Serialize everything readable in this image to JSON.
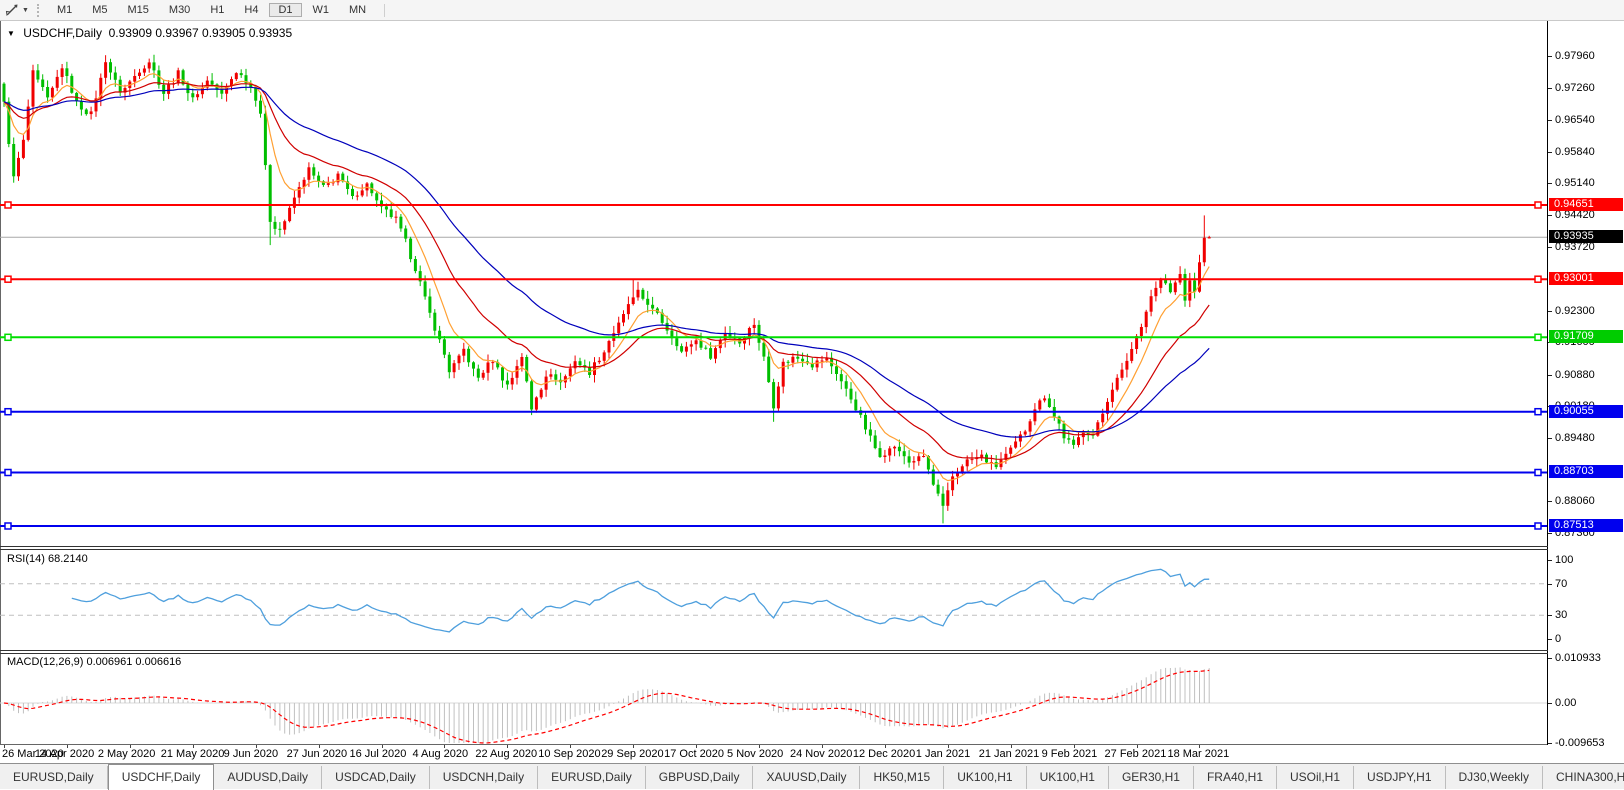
{
  "toolbar": {
    "timeframes": [
      "M1",
      "M5",
      "M15",
      "M30",
      "H1",
      "H4",
      "D1",
      "W1",
      "MN"
    ],
    "active_timeframe": "D1"
  },
  "chart": {
    "title_symbol": "USDCHF,Daily",
    "title_ohlc": "0.93909 0.93967 0.93905 0.93935"
  },
  "rsi_panel": {
    "label": "RSI(14)",
    "value": "68.2140"
  },
  "macd_panel": {
    "label": "MACD(12,26,9)",
    "values": "0.006961 0.006616"
  },
  "axis_badges": [
    {
      "label": "0.94651",
      "value": 0.94651,
      "color": "#ff0000"
    },
    {
      "label": "0.93935",
      "value": 0.93935,
      "color": "#000000"
    },
    {
      "label": "0.93001",
      "value": 0.93001,
      "color": "#ff0000"
    },
    {
      "label": "0.91709",
      "value": 0.91709,
      "color": "#00cc00"
    },
    {
      "label": "0.90055",
      "value": 0.90055,
      "color": "#0000ee"
    },
    {
      "label": "0.88703",
      "value": 0.88703,
      "color": "#0000ee"
    },
    {
      "label": "0.87513",
      "value": 0.87513,
      "color": "#0000ee"
    }
  ],
  "tabs": [
    {
      "label": "EURUSD,Daily",
      "active": false
    },
    {
      "label": "USDCHF,Daily",
      "active": true
    },
    {
      "label": "AUDUSD,Daily",
      "active": false
    },
    {
      "label": "USDCAD,Daily",
      "active": false
    },
    {
      "label": "USDCNH,Daily",
      "active": false
    },
    {
      "label": "EURUSD,Daily",
      "active": false
    },
    {
      "label": "GBPUSD,Daily",
      "active": false
    },
    {
      "label": "XAUUSD,Daily",
      "active": false
    },
    {
      "label": "HK50,M15",
      "active": false
    },
    {
      "label": "UK100,H1",
      "active": false
    },
    {
      "label": "UK100,H1",
      "active": false
    },
    {
      "label": "GER30,H1",
      "active": false
    },
    {
      "label": "FRA40,H1",
      "active": false
    },
    {
      "label": "USOil,H1",
      "active": false
    },
    {
      "label": "USDJPY,H1",
      "active": false
    },
    {
      "label": "DJ30,Weekly",
      "active": false
    },
    {
      "label": "CHINA300,H1",
      "active": false
    }
  ],
  "chart_data": {
    "type": "candlestick",
    "symbol": "USDCHF",
    "timeframe": "Daily",
    "last_ohlc": {
      "open": 0.93909,
      "high": 0.93967,
      "low": 0.93905,
      "close": 0.93935
    },
    "current_price": 0.93935,
    "up_color": "#f00000",
    "down_color": "#00be00",
    "y_axis": {
      "range": [
        0.8709,
        0.9874
      ],
      "ticks": [
        "0.97960",
        "0.97260",
        "0.96540",
        "0.95840",
        "0.95140",
        "0.94420",
        "0.93720",
        "0.92300",
        "0.91600",
        "0.90880",
        "0.90180",
        "0.89480",
        "0.88060",
        "0.87360"
      ]
    },
    "x_labels": [
      "26 Mar 2020",
      "14 Apr 2020",
      "2 May 2020",
      "21 May 2020",
      "9 Jun 2020",
      "27 Jun 2020",
      "16 Jul 2020",
      "4 Aug 2020",
      "22 Aug 2020",
      "10 Sep 2020",
      "29 Sep 2020",
      "17 Oct 2020",
      "5 Nov 2020",
      "24 Nov 2020",
      "12 Dec 2020",
      "1 Jan 2021",
      "21 Jan 2021",
      "9 Feb 2021",
      "27 Feb 2021",
      "18 Mar 2021"
    ],
    "label_every_n_candles": 13,
    "candles_total": 250,
    "close_anchors": [
      [
        0,
        0.969
      ],
      [
        2,
        0.9525
      ],
      [
        4,
        0.961
      ],
      [
        6,
        0.9762
      ],
      [
        9,
        0.97
      ],
      [
        12,
        0.9775
      ],
      [
        15,
        0.969
      ],
      [
        18,
        0.9668
      ],
      [
        21,
        0.9788
      ],
      [
        24,
        0.9715
      ],
      [
        27,
        0.9752
      ],
      [
        30,
        0.9785
      ],
      [
        33,
        0.9712
      ],
      [
        36,
        0.976
      ],
      [
        39,
        0.9698
      ],
      [
        42,
        0.9742
      ],
      [
        45,
        0.9708
      ],
      [
        48,
        0.976
      ],
      [
        51,
        0.9728
      ],
      [
        53,
        0.9672
      ],
      [
        55,
        0.943
      ],
      [
        57,
        0.9408
      ],
      [
        60,
        0.9478
      ],
      [
        63,
        0.9545
      ],
      [
        66,
        0.9502
      ],
      [
        69,
        0.9532
      ],
      [
        72,
        0.9482
      ],
      [
        75,
        0.9508
      ],
      [
        78,
        0.9458
      ],
      [
        81,
        0.9432
      ],
      [
        83,
        0.9382
      ],
      [
        86,
        0.9292
      ],
      [
        89,
        0.9192
      ],
      [
        92,
        0.9098
      ],
      [
        95,
        0.9142
      ],
      [
        98,
        0.9078
      ],
      [
        101,
        0.9122
      ],
      [
        104,
        0.9062
      ],
      [
        107,
        0.9132
      ],
      [
        109,
        0.9012
      ],
      [
        112,
        0.9088
      ],
      [
        115,
        0.9072
      ],
      [
        118,
        0.9118
      ],
      [
        121,
        0.9092
      ],
      [
        124,
        0.9142
      ],
      [
        127,
        0.9202
      ],
      [
        129,
        0.9242
      ],
      [
        131,
        0.9268
      ],
      [
        134,
        0.9232
      ],
      [
        137,
        0.9188
      ],
      [
        140,
        0.9138
      ],
      [
        143,
        0.9162
      ],
      [
        146,
        0.9128
      ],
      [
        149,
        0.9182
      ],
      [
        152,
        0.9162
      ],
      [
        155,
        0.9198
      ],
      [
        157,
        0.9122
      ],
      [
        159,
        0.9022
      ],
      [
        161,
        0.9112
      ],
      [
        164,
        0.9128
      ],
      [
        167,
        0.9112
      ],
      [
        170,
        0.9122
      ],
      [
        173,
        0.9072
      ],
      [
        176,
        0.9012
      ],
      [
        179,
        0.8948
      ],
      [
        181,
        0.8908
      ],
      [
        184,
        0.8928
      ],
      [
        187,
        0.8892
      ],
      [
        190,
        0.8908
      ],
      [
        192,
        0.8842
      ],
      [
        194,
        0.8792
      ],
      [
        196,
        0.8858
      ],
      [
        199,
        0.8898
      ],
      [
        202,
        0.8908
      ],
      [
        205,
        0.8882
      ],
      [
        208,
        0.8922
      ],
      [
        211,
        0.8962
      ],
      [
        213,
        0.9012
      ],
      [
        215,
        0.9042
      ],
      [
        217,
        0.8998
      ],
      [
        219,
        0.8952
      ],
      [
        221,
        0.8928
      ],
      [
        223,
        0.8968
      ],
      [
        225,
        0.8952
      ],
      [
        227,
        0.9002
      ],
      [
        229,
        0.9062
      ],
      [
        231,
        0.9092
      ],
      [
        233,
        0.9142
      ],
      [
        235,
        0.9202
      ],
      [
        237,
        0.9262
      ],
      [
        239,
        0.9302
      ],
      [
        241,
        0.9272
      ],
      [
        243,
        0.9312
      ],
      [
        244,
        0.9258
      ],
      [
        245,
        0.9292
      ],
      [
        246,
        0.9272
      ],
      [
        247,
        0.9332
      ],
      [
        248,
        0.9398
      ],
      [
        249,
        0.93935
      ]
    ],
    "candle_overrides": {
      "55": {
        "l": 0.9376
      },
      "109": {
        "l": 0.8998
      },
      "130": {
        "h": 0.93
      },
      "159": {
        "l": 0.8983
      },
      "194": {
        "l": 0.8757
      },
      "248": {
        "h": 0.9442
      },
      "249": {
        "o": 0.93909,
        "h": 0.93967,
        "l": 0.93905,
        "c": 0.93935
      }
    },
    "h_lines": [
      {
        "price": 0.94651,
        "color": "#ff0000"
      },
      {
        "price": 0.93001,
        "color": "#ff0000"
      },
      {
        "price": 0.91709,
        "color": "#00dd00"
      },
      {
        "price": 0.90055,
        "color": "#0000ee"
      },
      {
        "price": 0.88703,
        "color": "#0000ee"
      },
      {
        "price": 0.87513,
        "color": "#0000ee"
      }
    ],
    "moving_averages": [
      {
        "period": 8,
        "color": "#ffa033"
      },
      {
        "period": 21,
        "color": "#d00000"
      },
      {
        "period": 45,
        "color": "#0000bb"
      }
    ],
    "indicators": {
      "rsi": {
        "period": 14,
        "current": 68.214,
        "levels": [
          70,
          30
        ],
        "axis_ticks": [
          "100",
          "70",
          "30",
          "0"
        ],
        "color": "#4e9fdd"
      },
      "macd": {
        "fast": 12,
        "slow": 26,
        "signal": 9,
        "current_main": 0.006961,
        "current_signal": 0.006616,
        "axis_ticks": [
          "0.010933",
          "0.00",
          "-0.009653"
        ],
        "hist_color": "#c0c0c0",
        "signal_color": "#ff0000"
      }
    }
  }
}
